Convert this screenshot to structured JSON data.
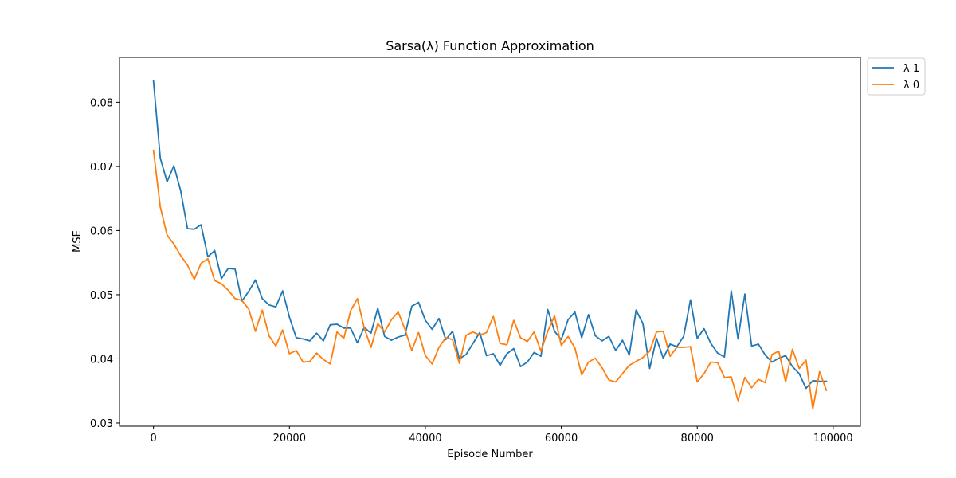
{
  "chart_data": {
    "type": "line",
    "title": "Sarsa(λ) Function Approximation",
    "xlabel": "Episode Number",
    "ylabel": "MSE",
    "xlim": [
      -5000,
      104000
    ],
    "ylim": [
      0.0295,
      0.087
    ],
    "xticks": [
      0,
      20000,
      40000,
      60000,
      80000,
      100000
    ],
    "xtick_labels": [
      "0",
      "20000",
      "40000",
      "60000",
      "80000",
      "100000"
    ],
    "yticks": [
      0.03,
      0.04,
      0.05,
      0.06,
      0.07,
      0.08
    ],
    "ytick_labels": [
      "0.03",
      "0.04",
      "0.05",
      "0.06",
      "0.07",
      "0.08"
    ],
    "grid": false,
    "legend_position": "outside-top-right",
    "x_start": 0,
    "x_step": 1000,
    "series": [
      {
        "name": "λ 1",
        "color": "#1f77b4",
        "values": [
          0.0833,
          0.0713,
          0.0676,
          0.0701,
          0.0662,
          0.0603,
          0.0602,
          0.0609,
          0.0559,
          0.0569,
          0.0525,
          0.0541,
          0.054,
          0.049,
          0.0505,
          0.0523,
          0.0494,
          0.0484,
          0.0481,
          0.0506,
          0.0465,
          0.0433,
          0.0431,
          0.0428,
          0.044,
          0.0428,
          0.0453,
          0.0454,
          0.0448,
          0.0448,
          0.0425,
          0.0449,
          0.044,
          0.0479,
          0.0435,
          0.0429,
          0.0434,
          0.0437,
          0.0482,
          0.0488,
          0.046,
          0.0446,
          0.0463,
          0.043,
          0.0443,
          0.04,
          0.0407,
          0.0424,
          0.0441,
          0.0405,
          0.0408,
          0.039,
          0.0408,
          0.0416,
          0.0388,
          0.0395,
          0.041,
          0.0404,
          0.0477,
          0.0443,
          0.043,
          0.0461,
          0.0473,
          0.0433,
          0.0469,
          0.0436,
          0.0428,
          0.0435,
          0.0413,
          0.0429,
          0.0406,
          0.0476,
          0.0455,
          0.0385,
          0.0432,
          0.0401,
          0.0423,
          0.0419,
          0.0435,
          0.0492,
          0.0432,
          0.0447,
          0.0424,
          0.0409,
          0.0403,
          0.0506,
          0.0431,
          0.0501,
          0.042,
          0.0423,
          0.0406,
          0.0395,
          0.0401,
          0.0405,
          0.0388,
          0.0377,
          0.0354,
          0.0366,
          0.0365,
          0.0365
        ]
      },
      {
        "name": "λ 0",
        "color": "#ff7f0e",
        "values": [
          0.0725,
          0.0637,
          0.0593,
          0.0579,
          0.0561,
          0.0546,
          0.0524,
          0.0549,
          0.0556,
          0.0522,
          0.0517,
          0.0507,
          0.0494,
          0.0491,
          0.0478,
          0.0443,
          0.0476,
          0.0436,
          0.042,
          0.0445,
          0.0408,
          0.0413,
          0.0395,
          0.0396,
          0.0409,
          0.0399,
          0.0392,
          0.0442,
          0.0432,
          0.0475,
          0.0494,
          0.0448,
          0.0418,
          0.0455,
          0.0442,
          0.0461,
          0.0473,
          0.0446,
          0.0413,
          0.0441,
          0.0405,
          0.0392,
          0.0418,
          0.0433,
          0.043,
          0.0393,
          0.0437,
          0.0442,
          0.0437,
          0.0441,
          0.0466,
          0.0424,
          0.0422,
          0.046,
          0.0433,
          0.0427,
          0.0442,
          0.0412,
          0.0443,
          0.0467,
          0.0421,
          0.0435,
          0.0417,
          0.0375,
          0.0395,
          0.0401,
          0.0386,
          0.0367,
          0.0364,
          0.0377,
          0.039,
          0.0396,
          0.0402,
          0.0412,
          0.0442,
          0.0443,
          0.0404,
          0.0418,
          0.0418,
          0.0419,
          0.0364,
          0.0377,
          0.0395,
          0.0394,
          0.0371,
          0.0372,
          0.0335,
          0.0371,
          0.0355,
          0.0368,
          0.0363,
          0.0407,
          0.0412,
          0.0364,
          0.0415,
          0.0385,
          0.0398,
          0.0322,
          0.038,
          0.0351
        ]
      }
    ]
  }
}
